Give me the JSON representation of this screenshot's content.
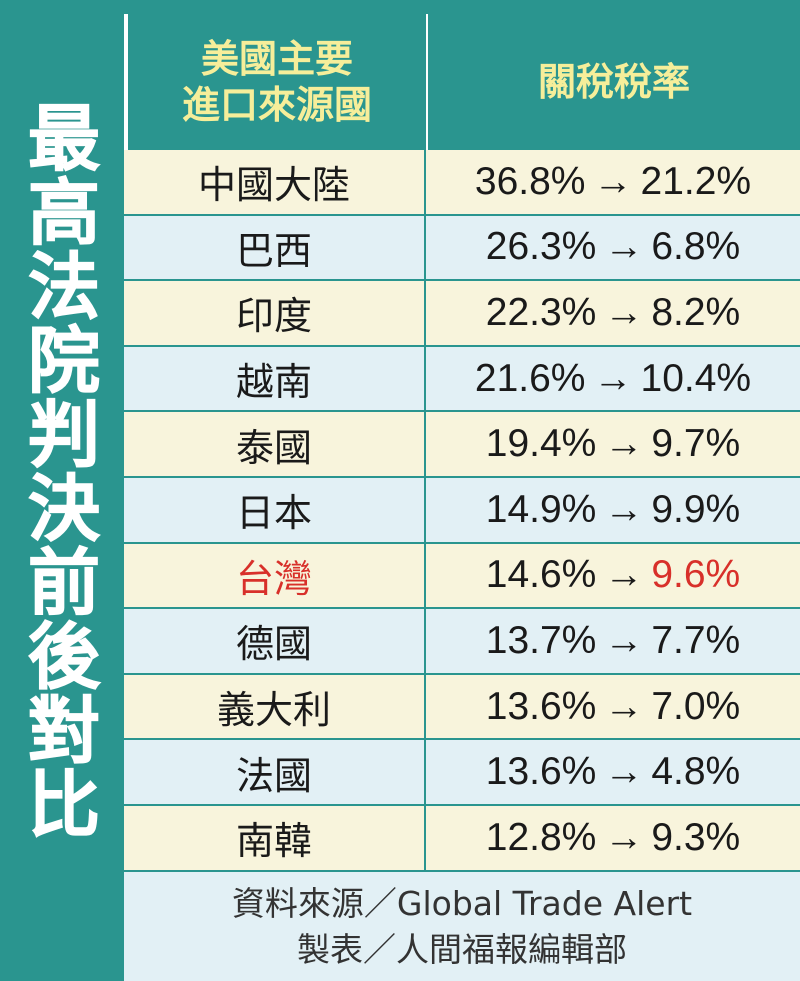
{
  "side_title": [
    "最",
    "高",
    "法",
    "院",
    "判",
    "決",
    "前",
    "後",
    "對",
    "比"
  ],
  "header": {
    "col1_line1": "美國主要",
    "col1_line2": "進口來源國",
    "col2": "關稅稅率"
  },
  "arrow": "→",
  "rows": [
    {
      "country": "中國大陸",
      "before": "36.8%",
      "after": "21.2%"
    },
    {
      "country": "巴西",
      "before": "26.3%",
      "after": "6.8%"
    },
    {
      "country": "印度",
      "before": "22.3%",
      "after": "8.2%"
    },
    {
      "country": "越南",
      "before": "21.6%",
      "after": "10.4%"
    },
    {
      "country": "泰國",
      "before": "19.4%",
      "after": "9.7%"
    },
    {
      "country": "日本",
      "before": "14.9%",
      "after": "9.9%"
    },
    {
      "country": "台灣",
      "before": "14.6%",
      "after": "9.6%"
    },
    {
      "country": "德國",
      "before": "13.7%",
      "after": "7.7%"
    },
    {
      "country": "義大利",
      "before": "13.6%",
      "after": "7.0%"
    },
    {
      "country": "法國",
      "before": "13.6%",
      "after": "4.8%"
    },
    {
      "country": "南韓",
      "before": "12.8%",
      "after": "9.3%"
    }
  ],
  "footer": {
    "source": "資料來源／Global Trade Alert",
    "credit": "製表／人間福報編輯部"
  },
  "colors": {
    "frame": "#2a958f",
    "header_text": "#f6ee9a",
    "row_cream": "#f8f4dc",
    "row_blue": "#e2f0f5",
    "highlight": "#d8302a"
  }
}
